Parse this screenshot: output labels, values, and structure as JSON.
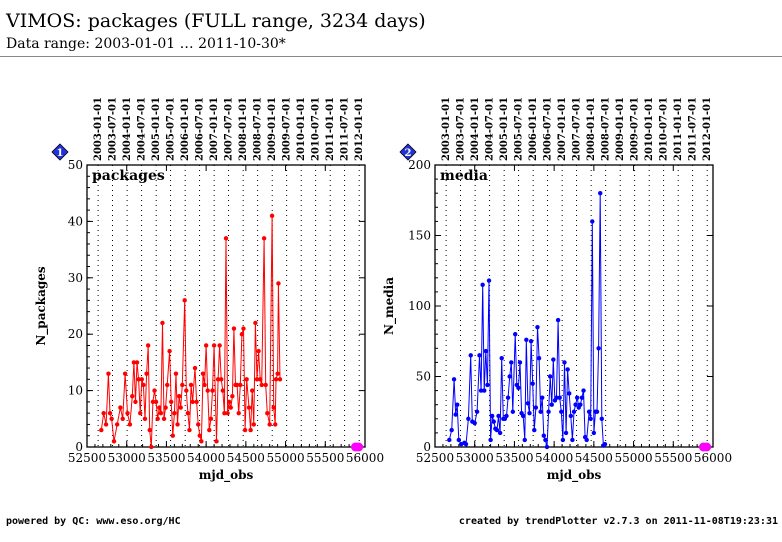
{
  "header": {
    "title": "VIMOS: packages (FULL range, 3234 days)",
    "subtitle": "Data range: 2003-01-01 … 2011-10-30*"
  },
  "footer": {
    "left": "powered by QC: www.eso.org/HC",
    "right": "created by trendPlotter v2.7.3 on 2011-11-08T19:23:31"
  },
  "colors": {
    "packages": "#ff0000",
    "media": "#0000ff",
    "marker": "#ff00ff",
    "badge": "#2233dd"
  },
  "chart_data": [
    {
      "type": "line",
      "panel_number": "1",
      "panel_label": "packages",
      "xlabel": "mjd_obs",
      "ylabel": "N_packages",
      "xlim": [
        52500,
        56000
      ],
      "ylim": [
        0,
        50
      ],
      "xticks": [
        52500,
        53000,
        53500,
        54000,
        54500,
        55000,
        55500,
        56000
      ],
      "yticks": [
        0,
        10,
        20,
        30,
        40,
        50
      ],
      "date_ticks": [
        "2003-01-01",
        "2003-07-01",
        "2004-01-01",
        "2004-07-01",
        "2005-01-01",
        "2005-07-01",
        "2006-01-01",
        "2006-07-01",
        "2007-01-01",
        "2007-07-01",
        "2008-01-01",
        "2008-07-01",
        "2009-01-01",
        "2009-07-01",
        "2010-01-01",
        "2010-07-01",
        "2011-01-01",
        "2011-07-01",
        "2012-01-01"
      ],
      "date_tick_mjd": [
        52640,
        52821,
        53005,
        53187,
        53371,
        53552,
        53736,
        53917,
        54101,
        54282,
        54466,
        54648,
        54832,
        55013,
        55197,
        55378,
        55562,
        55743,
        55927
      ],
      "grid": "vertical dotted lines at date ticks",
      "series": [
        {
          "color": "#ff0000",
          "points": [
            [
              52680,
              3
            ],
            [
              52710,
              6
            ],
            [
              52740,
              4
            ],
            [
              52770,
              13
            ],
            [
              52790,
              6
            ],
            [
              52810,
              5
            ],
            [
              52840,
              1
            ],
            [
              52880,
              4
            ],
            [
              52920,
              7
            ],
            [
              52950,
              5
            ],
            [
              52980,
              13
            ],
            [
              53010,
              6
            ],
            [
              53040,
              4
            ],
            [
              53070,
              9
            ],
            [
              53090,
              15
            ],
            [
              53110,
              8
            ],
            [
              53130,
              15
            ],
            [
              53150,
              12
            ],
            [
              53170,
              6
            ],
            [
              53190,
              12
            ],
            [
              53210,
              11
            ],
            [
              53230,
              5
            ],
            [
              53250,
              13
            ],
            [
              53270,
              18
            ],
            [
              53290,
              3
            ],
            [
              53310,
              0
            ],
            [
              53330,
              8
            ],
            [
              53350,
              10
            ],
            [
              53370,
              8
            ],
            [
              53390,
              5
            ],
            [
              53410,
              7
            ],
            [
              53430,
              6
            ],
            [
              53450,
              22
            ],
            [
              53470,
              5
            ],
            [
              53490,
              7
            ],
            [
              53510,
              11
            ],
            [
              53540,
              17
            ],
            [
              53560,
              8
            ],
            [
              53580,
              2
            ],
            [
              53600,
              6
            ],
            [
              53620,
              13
            ],
            [
              53640,
              4
            ],
            [
              53660,
              9
            ],
            [
              53680,
              7
            ],
            [
              53700,
              11
            ],
            [
              53730,
              26
            ],
            [
              53750,
              10
            ],
            [
              53770,
              6
            ],
            [
              53790,
              3
            ],
            [
              53810,
              11
            ],
            [
              53830,
              8
            ],
            [
              53860,
              14
            ],
            [
              53880,
              8
            ],
            [
              53900,
              4
            ],
            [
              53920,
              2
            ],
            [
              53940,
              1
            ],
            [
              53960,
              13
            ],
            [
              53980,
              11
            ],
            [
              54000,
              18
            ],
            [
              54020,
              10
            ],
            [
              54040,
              3
            ],
            [
              54060,
              5
            ],
            [
              54080,
              10
            ],
            [
              54100,
              18
            ],
            [
              54130,
              1
            ],
            [
              54150,
              12
            ],
            [
              54170,
              18
            ],
            [
              54190,
              12
            ],
            [
              54210,
              10
            ],
            [
              54230,
              6
            ],
            [
              54250,
              37
            ],
            [
              54270,
              6
            ],
            [
              54290,
              8
            ],
            [
              54310,
              7
            ],
            [
              54330,
              9
            ],
            [
              54350,
              21
            ],
            [
              54370,
              11
            ],
            [
              54390,
              11
            ],
            [
              54410,
              6
            ],
            [
              54430,
              11
            ],
            [
              54450,
              20
            ],
            [
              54470,
              21
            ],
            [
              54490,
              3
            ],
            [
              54510,
              12
            ],
            [
              54540,
              7
            ],
            [
              54560,
              3
            ],
            [
              54580,
              10
            ],
            [
              54600,
              4
            ],
            [
              54620,
              22
            ],
            [
              54640,
              12
            ],
            [
              54660,
              17
            ],
            [
              54680,
              12
            ],
            [
              54700,
              11
            ],
            [
              54730,
              37
            ],
            [
              54750,
              11
            ],
            [
              54770,
              6
            ],
            [
              54800,
              4
            ],
            [
              54830,
              41
            ],
            [
              54850,
              7
            ],
            [
              54870,
              4
            ],
            [
              54880,
              12
            ],
            [
              54900,
              13
            ],
            [
              54910,
              29
            ],
            [
              54930,
              12
            ]
          ]
        }
      ],
      "magenta_markers": [
        [
          55880,
          0
        ],
        [
          55920,
          0
        ]
      ]
    },
    {
      "type": "line",
      "panel_number": "2",
      "panel_label": "media",
      "xlabel": "mjd_obs",
      "ylabel": "N_media",
      "xlim": [
        52500,
        56000
      ],
      "ylim": [
        0,
        200
      ],
      "xticks": [
        52500,
        53000,
        53500,
        54000,
        54500,
        55000,
        55500,
        56000
      ],
      "yticks": [
        0,
        50,
        100,
        150,
        200
      ],
      "date_ticks": [
        "2003-01-01",
        "2003-07-01",
        "2004-01-01",
        "2004-07-01",
        "2005-01-01",
        "2005-07-01",
        "2006-01-01",
        "2006-07-01",
        "2007-01-01",
        "2007-07-01",
        "2008-01-01",
        "2008-07-01",
        "2009-01-01",
        "2009-07-01",
        "2010-01-01",
        "2010-07-01",
        "2011-01-01",
        "2011-07-01",
        "2012-01-01"
      ],
      "date_tick_mjd": [
        52640,
        52821,
        53005,
        53187,
        53371,
        53552,
        53736,
        53917,
        54101,
        54282,
        54466,
        54648,
        54832,
        55013,
        55197,
        55378,
        55562,
        55743,
        55927
      ],
      "grid": "vertical dotted lines at date ticks",
      "series": [
        {
          "color": "#0000ff",
          "points": [
            [
              52680,
              5
            ],
            [
              52710,
              12
            ],
            [
              52740,
              48
            ],
            [
              52760,
              23
            ],
            [
              52780,
              30
            ],
            [
              52800,
              5
            ],
            [
              52830,
              2
            ],
            [
              52870,
              3
            ],
            [
              52890,
              2
            ],
            [
              52920,
              20
            ],
            [
              52950,
              65
            ],
            [
              52970,
              18
            ],
            [
              53000,
              17
            ],
            [
              53030,
              25
            ],
            [
              53060,
              65
            ],
            [
              53080,
              40
            ],
            [
              53100,
              115
            ],
            [
              53120,
              40
            ],
            [
              53140,
              68
            ],
            [
              53160,
              44
            ],
            [
              53180,
              118
            ],
            [
              53200,
              5
            ],
            [
              53220,
              22
            ],
            [
              53240,
              18
            ],
            [
              53260,
              13
            ],
            [
              53280,
              12
            ],
            [
              53300,
              22
            ],
            [
              53320,
              10
            ],
            [
              53340,
              63
            ],
            [
              53360,
              20
            ],
            [
              53380,
              20
            ],
            [
              53400,
              22
            ],
            [
              53420,
              35
            ],
            [
              53440,
              50
            ],
            [
              53460,
              60
            ],
            [
              53480,
              25
            ],
            [
              53510,
              80
            ],
            [
              53530,
              44
            ],
            [
              53550,
              42
            ],
            [
              53570,
              60
            ],
            [
              53590,
              24
            ],
            [
              53610,
              22
            ],
            [
              53630,
              5
            ],
            [
              53650,
              76
            ],
            [
              53670,
              31
            ],
            [
              53690,
              24
            ],
            [
              53710,
              75
            ],
            [
              53730,
              45
            ],
            [
              53750,
              12
            ],
            [
              53770,
              28
            ],
            [
              53790,
              85
            ],
            [
              53810,
              63
            ],
            [
              53830,
              25
            ],
            [
              53850,
              35
            ],
            [
              53870,
              8
            ],
            [
              53890,
              5
            ],
            [
              53910,
              0
            ],
            [
              53930,
              25
            ],
            [
              53950,
              50
            ],
            [
              53970,
              30
            ],
            [
              53990,
              62
            ],
            [
              54010,
              33
            ],
            [
              54030,
              35
            ],
            [
              54050,
              90
            ],
            [
              54070,
              35
            ],
            [
              54090,
              25
            ],
            [
              54110,
              5
            ],
            [
              54130,
              60
            ],
            [
              54150,
              10
            ],
            [
              54170,
              55
            ],
            [
              54190,
              38
            ],
            [
              54210,
              22
            ],
            [
              54230,
              5
            ],
            [
              54250,
              25
            ],
            [
              54270,
              30
            ],
            [
              54290,
              35
            ],
            [
              54310,
              28
            ],
            [
              54330,
              30
            ],
            [
              54350,
              35
            ],
            [
              54370,
              40
            ],
            [
              54390,
              7
            ],
            [
              54410,
              5
            ],
            [
              54440,
              25
            ],
            [
              54460,
              20
            ],
            [
              54480,
              160
            ],
            [
              54500,
              10
            ],
            [
              54520,
              25
            ],
            [
              54540,
              25
            ],
            [
              54560,
              70
            ],
            [
              54580,
              180
            ],
            [
              54600,
              20
            ],
            [
              54620,
              1
            ],
            [
              54640,
              2
            ]
          ]
        }
      ],
      "magenta_markers": [
        [
          55880,
          0
        ],
        [
          55920,
          0
        ]
      ]
    }
  ]
}
